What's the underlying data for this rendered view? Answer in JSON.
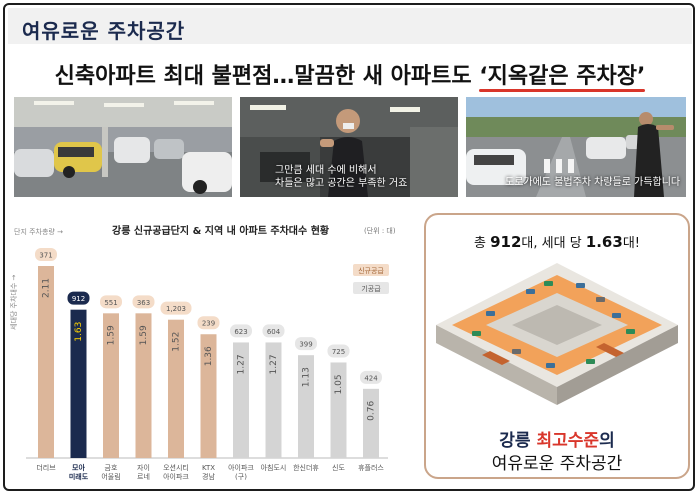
{
  "header": {
    "title": "여유로운 주차공간"
  },
  "headline": {
    "prefix": "신축아파트 최대 불편점…말끔한 새 아파트도 ",
    "emphasis": "‘지옥같은 주차장’"
  },
  "photos": [
    {
      "caption": ""
    },
    {
      "caption_line1": "그만큼 세대 수에 비해서",
      "caption_line2": "차들은 많고 공간은 부족한 거죠"
    },
    {
      "caption_line1": "도로가에도 불법주차 차량들로 가득합니다"
    }
  ],
  "callout": {
    "top_prefix": "총 ",
    "top_value1": "912",
    "top_mid": "대, 세대 당 ",
    "top_value2": "1.63",
    "top_suffix": "대!",
    "bottom_navy": "강릉 ",
    "bottom_red": "최고수준",
    "bottom_suffix": "의",
    "bottom_line2": "여유로운 주차공간"
  },
  "chart_data": {
    "type": "bar",
    "title": "강릉 신규공급단지 & 지역 내 아파트 주차대수 현황",
    "unit_label": "(단위 : 대)",
    "top_axis_note": "단지 주차총량 →",
    "y_axis_note": "세대당 주차대수 →",
    "categories": [
      "더리브",
      "모아 미래도",
      "금호 어울림",
      "자이 르네",
      "오션시티 아이파크",
      "KTX 경남",
      "아이파크 (구)",
      "아침도시",
      "한신더휴",
      "신도",
      "휴플러스"
    ],
    "category_lines": [
      [
        "더리브"
      ],
      [
        "모아",
        "미래도"
      ],
      [
        "금호",
        "어울림"
      ],
      [
        "자이",
        "르네"
      ],
      [
        "오션시티",
        "아이파크"
      ],
      [
        "KTX",
        "경남"
      ],
      [
        "아이파크",
        "(구)"
      ],
      [
        "아침도시"
      ],
      [
        "한신더휴"
      ],
      [
        "신도"
      ],
      [
        "휴플러스"
      ]
    ],
    "per_household": [
      2.11,
      1.63,
      1.59,
      1.59,
      1.52,
      1.36,
      1.27,
      1.27,
      1.13,
      1.05,
      0.76
    ],
    "per_household_labels": [
      "2.11",
      "1.63",
      "1.59",
      "1.59",
      "1.52",
      "1.36",
      "1.27",
      "1.27",
      "1.13",
      "1.05",
      "0.76"
    ],
    "total_parking": [
      "371",
      "912",
      "551",
      "363",
      "1,203",
      "239",
      "623",
      "604",
      "399",
      "725",
      "424"
    ],
    "groups": [
      "신규공급",
      "신규공급",
      "신규공급",
      "신규공급",
      "신규공급",
      "신규공급",
      "기공급",
      "기공급",
      "기공급",
      "기공급",
      "기공급"
    ],
    "highlight_index": 1,
    "legend": [
      {
        "name": "신규공급",
        "color": "#dcb69a"
      },
      {
        "name": "기공급",
        "color": "#d4d4d4"
      }
    ],
    "legend_position": "top-right",
    "ylim": [
      0,
      2.11
    ],
    "colors": {
      "new_supply": "#dcb69a",
      "existing": "#d4d4d4",
      "highlight": "#1b2a4e"
    }
  }
}
